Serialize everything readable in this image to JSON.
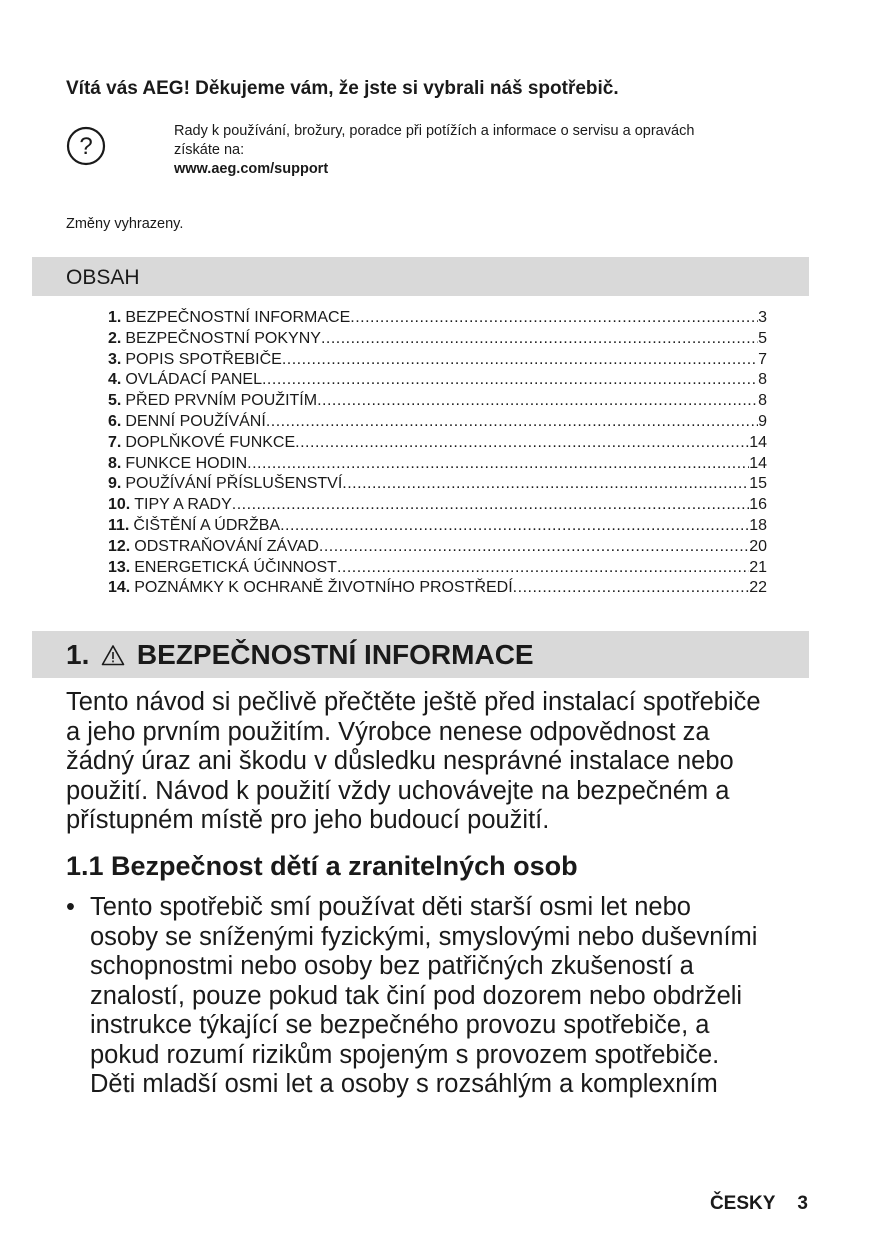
{
  "welcome": "Vítá vás AEG! Děkujeme vám, že jste si vybrali náš spotřebič.",
  "help": {
    "icon": "question-circle-icon",
    "lines": [
      "Rady k používání, brožury, poradce při potížích a informace o servisu a opravách",
      "získáte na:"
    ],
    "url": "www.aeg.com/support"
  },
  "changes": "Změny vyhrazeny.",
  "toc": {
    "title": "OBSAH",
    "items": [
      {
        "num": "1.",
        "label": "BEZPEČNOSTNÍ INFORMACE",
        "page": "3"
      },
      {
        "num": "2.",
        "label": "BEZPEČNOSTNÍ POKYNY",
        "page": "5"
      },
      {
        "num": "3.",
        "label": "POPIS SPOTŘEBIČE",
        "page": "7"
      },
      {
        "num": "4.",
        "label": "OVLÁDACÍ PANEL",
        "page": "8"
      },
      {
        "num": "5.",
        "label": "PŘED PRVNÍM POUŽITÍM",
        "page": "8"
      },
      {
        "num": "6.",
        "label": "DENNÍ POUŽÍVÁNÍ",
        "page": "9"
      },
      {
        "num": "7.",
        "label": "DOPLŇKOVÉ FUNKCE",
        "page": "14"
      },
      {
        "num": "8.",
        "label": "FUNKCE HODIN",
        "page": "14"
      },
      {
        "num": "9.",
        "label": "POUŽÍVÁNÍ PŘÍSLUŠENSTVÍ",
        "page": "15"
      },
      {
        "num": "10.",
        "label": "TIPY A RADY",
        "page": "16"
      },
      {
        "num": "11.",
        "label": "ČIŠTĚNÍ A ÚDRŽBA",
        "page": "18"
      },
      {
        "num": "12.",
        "label": "ODSTRAŇOVÁNÍ ZÁVAD",
        "page": "20"
      },
      {
        "num": "13.",
        "label": "ENERGETICKÁ ÚČINNOST",
        "page": "21"
      },
      {
        "num": "14.",
        "label": "POZNÁMKY K OCHRANĚ ŽIVOTNÍHO PROSTŘEDÍ",
        "page": "22"
      }
    ]
  },
  "section1": {
    "num": "1.",
    "icon": "warning-triangle-icon",
    "title": "BEZPEČNOSTNÍ INFORMACE",
    "intro_lines": [
      "Tento návod si pečlivě přečtěte ještě před instalací spotřebiče",
      "a jeho prvním použitím. Výrobce nenese odpovědnost za",
      "žádný úraz ani škodu v důsledku nesprávné instalace nebo",
      "použití. Návod k použití vždy uchovávejte na bezpečném a",
      "přístupném místě pro jeho budoucí použití."
    ],
    "subheading": "1.1 Bezpečnost dětí a zranitelných osob",
    "bullet_lines": [
      "Tento spotřebič smí používat děti starší osmi let nebo",
      "osoby se sníženými fyzickými, smyslovými nebo duševními",
      "schopnostmi nebo osoby bez patřičných zkušeností a",
      "znalostí, pouze pokud tak činí pod dozorem nebo obdrželi",
      "instrukce týkající se bezpečného provozu spotřebiče, a",
      "pokud rozumí rizikům spojeným s provozem spotřebiče.",
      "Děti mladší osmi let a osoby s rozsáhlým a komplexním"
    ]
  },
  "footer": {
    "language": "ČESKY",
    "page": "3"
  }
}
